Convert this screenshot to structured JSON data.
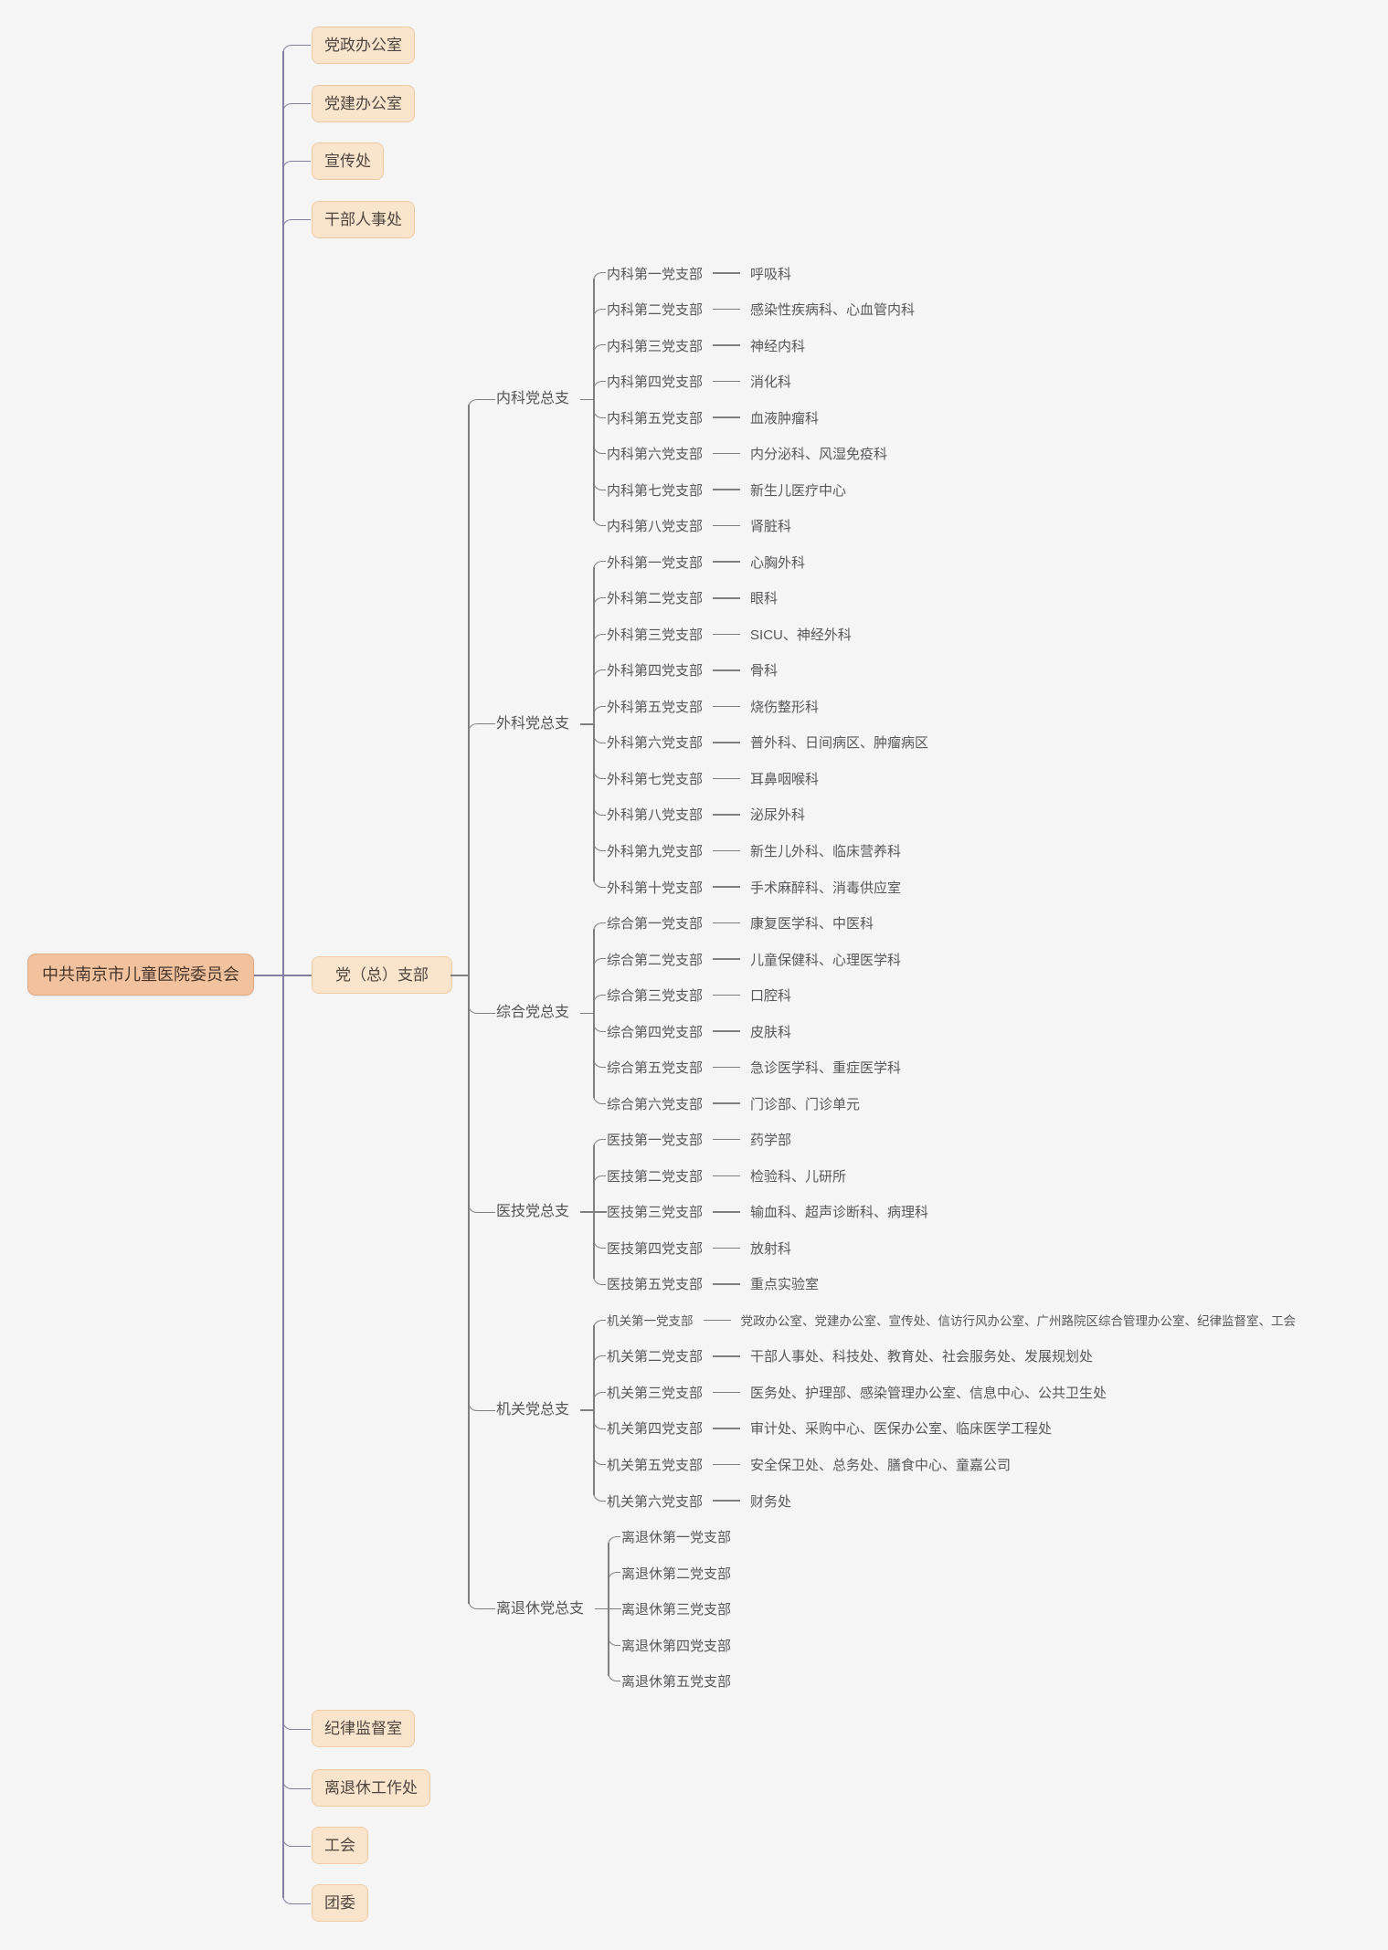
{
  "colors": {
    "background": "#f5f5f6",
    "trunk_purple": "#837d9e",
    "line_gray": "#7f7f7f",
    "root_fill": "#f2c19d",
    "root_border": "#e0ab83",
    "box_fill": "#fbe4cc",
    "box_border": "#eec9a2",
    "text_dark": "#46362c",
    "text_gray": "#58585a"
  },
  "tree": {
    "root": {
      "label": "中共南京市儿童医院委员会"
    },
    "children": [
      {
        "label": "党政办公室"
      },
      {
        "label": "党建办公室"
      },
      {
        "label": "宣传处"
      },
      {
        "label": "干部人事处"
      },
      {
        "label": "党（总）支部",
        "wide": true,
        "children": [
          {
            "label": "内科党总支",
            "children": [
              {
                "label": "内科第一党支部",
                "dept": "呼吸科"
              },
              {
                "label": "内科第二党支部",
                "dept": "感染性疾病科、心血管内科"
              },
              {
                "label": "内科第三党支部",
                "dept": "神经内科"
              },
              {
                "label": "内科第四党支部",
                "dept": "消化科"
              },
              {
                "label": "内科第五党支部",
                "dept": "血液肿瘤科"
              },
              {
                "label": "内科第六党支部",
                "dept": "内分泌科、风湿免疫科"
              },
              {
                "label": "内科第七党支部",
                "dept": "新生儿医疗中心"
              },
              {
                "label": "内科第八党支部",
                "dept": "肾脏科"
              }
            ]
          },
          {
            "label": "外科党总支",
            "children": [
              {
                "label": "外科第一党支部",
                "dept": "心胸外科"
              },
              {
                "label": "外科第二党支部",
                "dept": "眼科"
              },
              {
                "label": "外科第三党支部",
                "dept": "SICU、神经外科"
              },
              {
                "label": "外科第四党支部",
                "dept": "骨科"
              },
              {
                "label": "外科第五党支部",
                "dept": "烧伤整形科"
              },
              {
                "label": "外科第六党支部",
                "dept": "普外科、日间病区、肿瘤病区"
              },
              {
                "label": "外科第七党支部",
                "dept": "耳鼻咽喉科"
              },
              {
                "label": "外科第八党支部",
                "dept": "泌尿外科"
              },
              {
                "label": "外科第九党支部",
                "dept": "新生儿外科、临床营养科"
              },
              {
                "label": "外科第十党支部",
                "dept": "手术麻醉科、消毒供应室"
              }
            ]
          },
          {
            "label": "综合党总支",
            "children": [
              {
                "label": "综合第一党支部",
                "dept": "康复医学科、中医科"
              },
              {
                "label": "综合第二党支部",
                "dept": "儿童保健科、心理医学科"
              },
              {
                "label": "综合第三党支部",
                "dept": "口腔科"
              },
              {
                "label": "综合第四党支部",
                "dept": "皮肤科"
              },
              {
                "label": "综合第五党支部",
                "dept": "急诊医学科、重症医学科"
              },
              {
                "label": "综合第六党支部",
                "dept": "门诊部、门诊单元"
              }
            ]
          },
          {
            "label": "医技党总支",
            "children": [
              {
                "label": "医技第一党支部",
                "dept": "药学部"
              },
              {
                "label": "医技第二党支部",
                "dept": "检验科、儿研所"
              },
              {
                "label": "医技第三党支部",
                "dept": "输血科、超声诊断科、病理科"
              },
              {
                "label": "医技第四党支部",
                "dept": "放射科"
              },
              {
                "label": "医技第五党支部",
                "dept": "重点实验室"
              }
            ]
          },
          {
            "label": "机关党总支",
            "children": [
              {
                "label": "机关第一党支部",
                "small": true,
                "dept": "党政办公室、党建办公室、宣传处、信访行风办公室、广州路院区综合管理办公室、纪律监督室、工会"
              },
              {
                "label": "机关第二党支部",
                "dept": "干部人事处、科技处、教育处、社会服务处、发展规划处"
              },
              {
                "label": "机关第三党支部",
                "dept": "医务处、护理部、感染管理办公室、信息中心、公共卫生处"
              },
              {
                "label": "机关第四党支部",
                "dept": "审计处、采购中心、医保办公室、临床医学工程处"
              },
              {
                "label": "机关第五党支部",
                "dept": "安全保卫处、总务处、膳食中心、童嘉公司"
              },
              {
                "label": "机关第六党支部",
                "dept": "财务处"
              }
            ]
          },
          {
            "label": "离退休党总支",
            "children": [
              {
                "label": "离退休第一党支部"
              },
              {
                "label": "离退休第二党支部"
              },
              {
                "label": "离退休第三党支部"
              },
              {
                "label": "离退休第四党支部"
              },
              {
                "label": "离退休第五党支部"
              }
            ]
          }
        ]
      },
      {
        "label": "纪律监督室"
      },
      {
        "label": "离退休工作处"
      },
      {
        "label": "工会"
      },
      {
        "label": "团委"
      }
    ]
  }
}
